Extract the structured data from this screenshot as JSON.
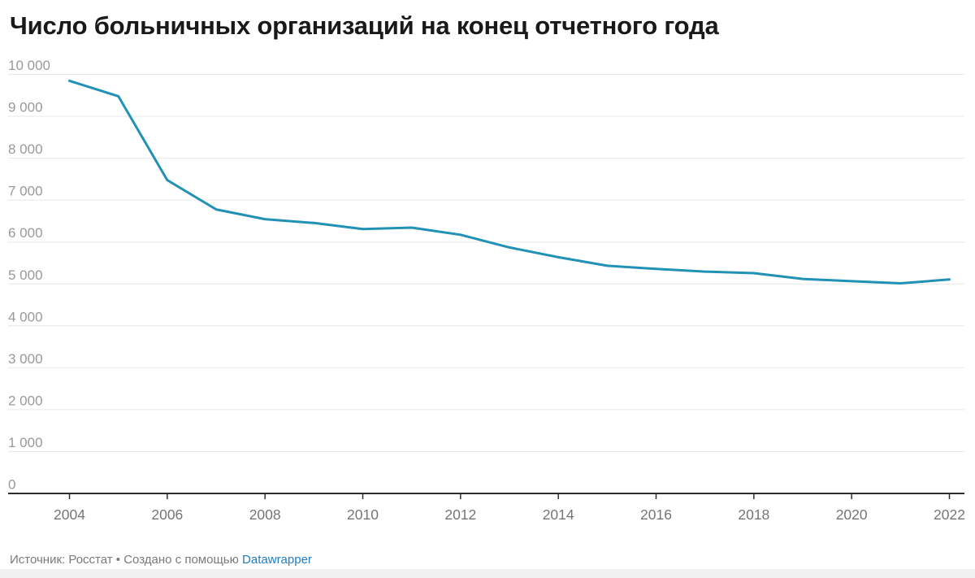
{
  "title": "Число больничных организаций на конец отчетного года",
  "footer": {
    "text_before_link": "Источник: Росстат • Создано с помощью ",
    "link_label": "Datawrapper"
  },
  "colors": {
    "line": "#2191b5",
    "grid": "#e7e7e7",
    "axis": "#2e2e2e",
    "title": "#191919",
    "y_tick_label": "#999999",
    "x_tick_label": "#757575",
    "footer_text": "#7a7a7a",
    "link": "#1d7dc6",
    "bottom_strip": "#f0f0f0"
  },
  "chart_data": {
    "type": "line",
    "title": "Число больничных организаций на конец отчетного года",
    "series_name": "Число больничных организаций",
    "x": [
      2004,
      2005,
      2006,
      2007,
      2008,
      2009,
      2010,
      2011,
      2012,
      2013,
      2014,
      2015,
      2016,
      2017,
      2018,
      2019,
      2020,
      2021,
      2022
    ],
    "values": [
      9847,
      9479,
      7478,
      6777,
      6545,
      6454,
      6308,
      6343,
      6172,
      5870,
      5638,
      5433,
      5357,
      5293,
      5257,
      5119,
      5065,
      5014,
      5106
    ],
    "xlabel": "",
    "ylabel": "",
    "ylim": [
      0,
      10000
    ],
    "y_tick_values": [
      0,
      1000,
      2000,
      3000,
      4000,
      5000,
      6000,
      7000,
      8000,
      9000,
      10000
    ],
    "y_tick_labels": [
      "0",
      "1 000",
      "2 000",
      "3 000",
      "4 000",
      "5 000",
      "6 000",
      "7 000",
      "8 000",
      "9 000",
      "10 000"
    ],
    "x_tick_values": [
      2004,
      2006,
      2008,
      2010,
      2012,
      2014,
      2016,
      2018,
      2020,
      2022
    ],
    "grid": "horizontal",
    "legend": "none"
  }
}
